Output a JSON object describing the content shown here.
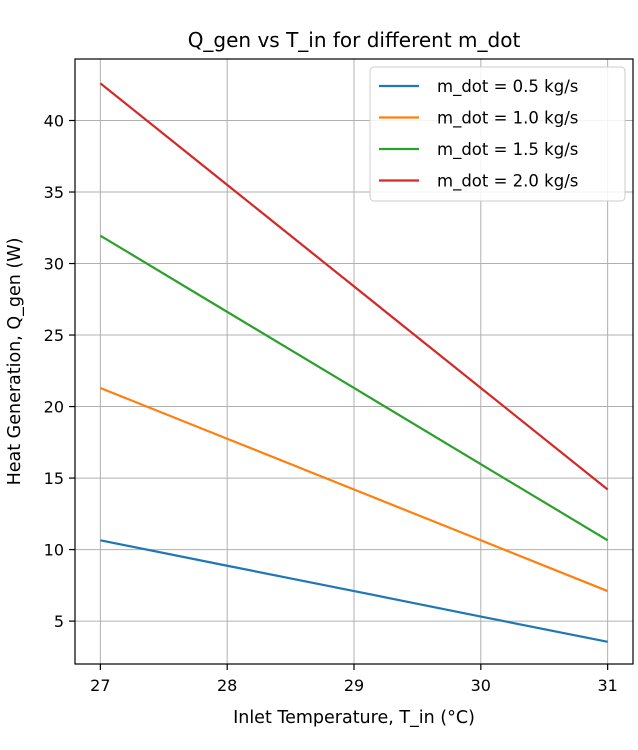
{
  "chart_data": {
    "type": "line",
    "title": "Q_gen vs T_in for different m_dot",
    "xlabel": "Inlet Temperature, T_in (°C)",
    "ylabel": "Heat Generation, Q_gen (W)",
    "xlim": [
      26.8,
      31.2
    ],
    "ylim": [
      2.0,
      44.3
    ],
    "xticks": [
      27,
      28,
      29,
      30,
      31
    ],
    "yticks": [
      5,
      10,
      15,
      20,
      25,
      30,
      35,
      40
    ],
    "grid": true,
    "legend_position": "top-right",
    "x": [
      27,
      28,
      29,
      30,
      31
    ],
    "series": [
      {
        "name": "m_dot = 0.5 kg/s",
        "color": "#1f77b4",
        "values": [
          10.65,
          8.87,
          7.1,
          5.32,
          3.55
        ]
      },
      {
        "name": "m_dot = 1.0 kg/s",
        "color": "#ff7f0e",
        "values": [
          21.3,
          17.75,
          14.2,
          10.65,
          7.1
        ]
      },
      {
        "name": "m_dot = 1.5 kg/s",
        "color": "#2ca02c",
        "values": [
          31.95,
          26.62,
          21.3,
          15.97,
          10.65
        ]
      },
      {
        "name": "m_dot = 2.0 kg/s",
        "color": "#d62728",
        "values": [
          42.6,
          35.5,
          28.4,
          21.3,
          14.2
        ]
      }
    ]
  }
}
